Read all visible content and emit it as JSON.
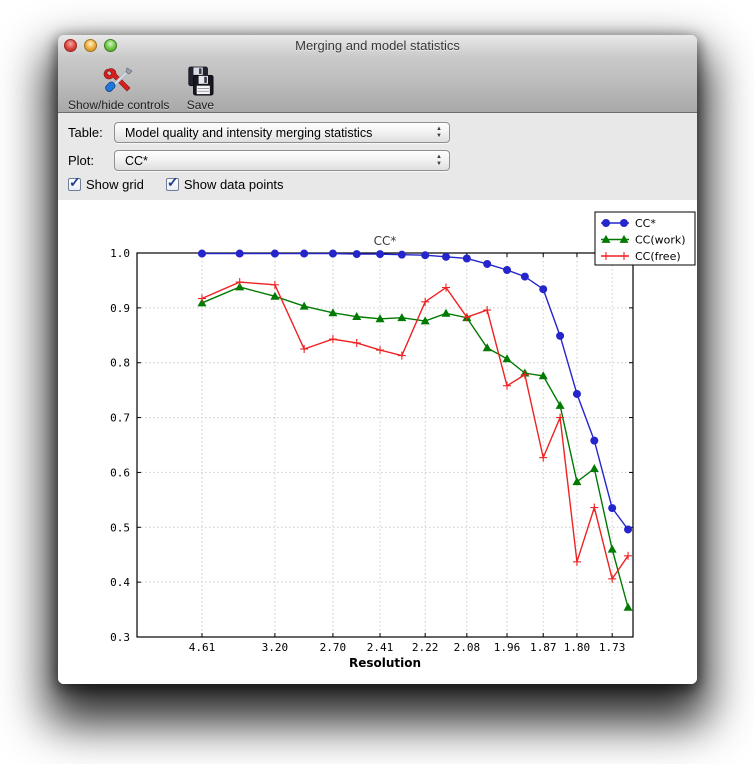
{
  "window": {
    "title": "Merging and model statistics"
  },
  "toolbar": {
    "show_hide_label": "Show/hide controls",
    "save_label": "Save"
  },
  "controls": {
    "table_label": "Table:",
    "table_value": "Model quality and intensity merging statistics",
    "plot_label": "Plot:",
    "plot_value": "CC*",
    "show_grid_label": "Show grid",
    "show_grid_checked": true,
    "show_data_points_label": "Show data points",
    "show_data_points_checked": true
  },
  "icons": {
    "checkmark": "✓",
    "arrow_up": "▲",
    "arrow_down": "▼"
  },
  "chart_data": {
    "type": "line",
    "title": "CC*",
    "xlabel": "Resolution",
    "ylim": [
      0.3,
      1.0
    ],
    "yticks": [
      1.0,
      0.9,
      0.8,
      0.7,
      0.6,
      0.5,
      0.4,
      0.3
    ],
    "grid": true,
    "legend_position": "top-right",
    "x_tick_labels": [
      "4.61",
      "3.20",
      "2.70",
      "2.41",
      "2.22",
      "2.08",
      "1.96",
      "1.87",
      "1.80",
      "1.73"
    ],
    "x_tick_every": 2,
    "point_fractions": [
      0.131,
      0.207,
      0.278,
      0.337,
      0.395,
      0.443,
      0.49,
      0.534,
      0.581,
      0.623,
      0.665,
      0.706,
      0.746,
      0.782,
      0.819,
      0.853,
      0.887,
      0.922,
      0.958,
      0.99
    ],
    "series": [
      {
        "name": "CC*",
        "color": "#2525cc",
        "marker": "circle",
        "values": [
          0.999,
          0.999,
          0.999,
          0.999,
          0.999,
          0.998,
          0.998,
          0.997,
          0.996,
          0.993,
          0.99,
          0.98,
          0.969,
          0.957,
          0.934,
          0.849,
          0.743,
          0.658,
          0.535,
          0.496
        ]
      },
      {
        "name": "CC(work)",
        "color": "#007a00",
        "marker": "triangle",
        "values": [
          0.909,
          0.938,
          0.921,
          0.903,
          0.891,
          0.884,
          0.88,
          0.882,
          0.876,
          0.89,
          0.882,
          0.827,
          0.807,
          0.781,
          0.776,
          0.722,
          0.583,
          0.607,
          0.46,
          0.354
        ]
      },
      {
        "name": "CC(free)",
        "color": "#ee2222",
        "marker": "plus",
        "values": [
          0.917,
          0.947,
          0.942,
          0.825,
          0.843,
          0.836,
          0.823,
          0.813,
          0.911,
          0.937,
          0.883,
          0.896,
          0.758,
          0.778,
          0.627,
          0.7,
          0.437,
          0.536,
          0.406,
          0.448
        ]
      }
    ]
  }
}
